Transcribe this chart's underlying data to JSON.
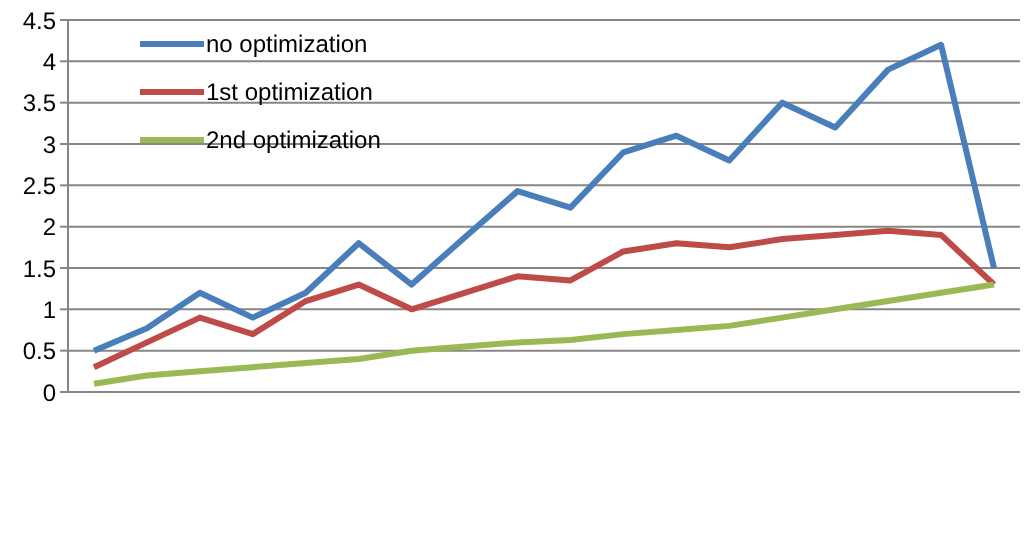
{
  "chart_data": {
    "type": "line",
    "categories": [
      null,
      null,
      null,
      null,
      null,
      null,
      null,
      null,
      null,
      null,
      null,
      null,
      null,
      null,
      null,
      null,
      null,
      null
    ],
    "series": [
      {
        "name": "no optimization",
        "color": "#4a7ebb",
        "values": [
          0.5,
          0.77,
          1.2,
          0.9,
          1.2,
          1.8,
          1.3,
          1.87,
          2.43,
          2.23,
          2.9,
          3.1,
          2.8,
          3.5,
          3.2,
          3.9,
          4.2,
          1.5
        ]
      },
      {
        "name": "1st optimization",
        "color": "#be4b48",
        "values": [
          0.3,
          0.6,
          0.9,
          0.7,
          1.1,
          1.3,
          1.0,
          1.2,
          1.4,
          1.35,
          1.7,
          1.8,
          1.75,
          1.85,
          1.9,
          1.95,
          1.9,
          1.3
        ]
      },
      {
        "name": "2nd optimization",
        "color": "#98b954",
        "values": [
          0.1,
          0.2,
          0.25,
          0.3,
          0.35,
          0.4,
          0.5,
          0.55,
          0.6,
          0.63,
          0.7,
          0.75,
          0.8,
          0.9,
          1.0,
          1.1,
          1.2,
          1.3
        ]
      }
    ],
    "ylim": [
      0,
      4.5
    ],
    "yticks": [
      0,
      0.5,
      1,
      1.5,
      2,
      2.5,
      3,
      3.5,
      4,
      4.5
    ],
    "grid": "y",
    "legend": "top left",
    "marker": "none",
    "line_style": "solid"
  }
}
